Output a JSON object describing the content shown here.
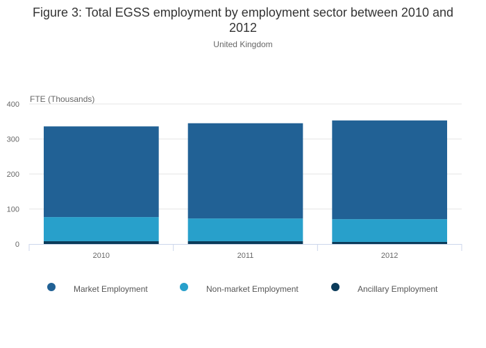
{
  "chart_data": {
    "type": "bar",
    "stacked": true,
    "title_line1": "Figure 3: Total EGSS employment by employment sector between 2010 and",
    "title_line2": "2012",
    "subtitle": "United Kingdom",
    "ylabel": "FTE (Thousands)",
    "xlabel": "",
    "ylim": [
      0,
      400
    ],
    "yticks": [
      "0",
      "100",
      "200",
      "300",
      "400"
    ],
    "categories": [
      "2010",
      "2011",
      "2012"
    ],
    "grid": true,
    "legend_position": "bottom",
    "series": [
      {
        "name": "Ancillary Employment",
        "color": "#0b3b5a",
        "values": [
          8,
          8,
          6
        ]
      },
      {
        "name": "Non-market Employment",
        "color": "#28a0cb",
        "values": [
          69,
          65,
          65
        ]
      },
      {
        "name": "Market Employment",
        "color": "#216195",
        "values": [
          259,
          272,
          282
        ]
      }
    ],
    "legend_order": [
      "Market Employment",
      "Non-market Employment",
      "Ancillary Employment"
    ]
  }
}
